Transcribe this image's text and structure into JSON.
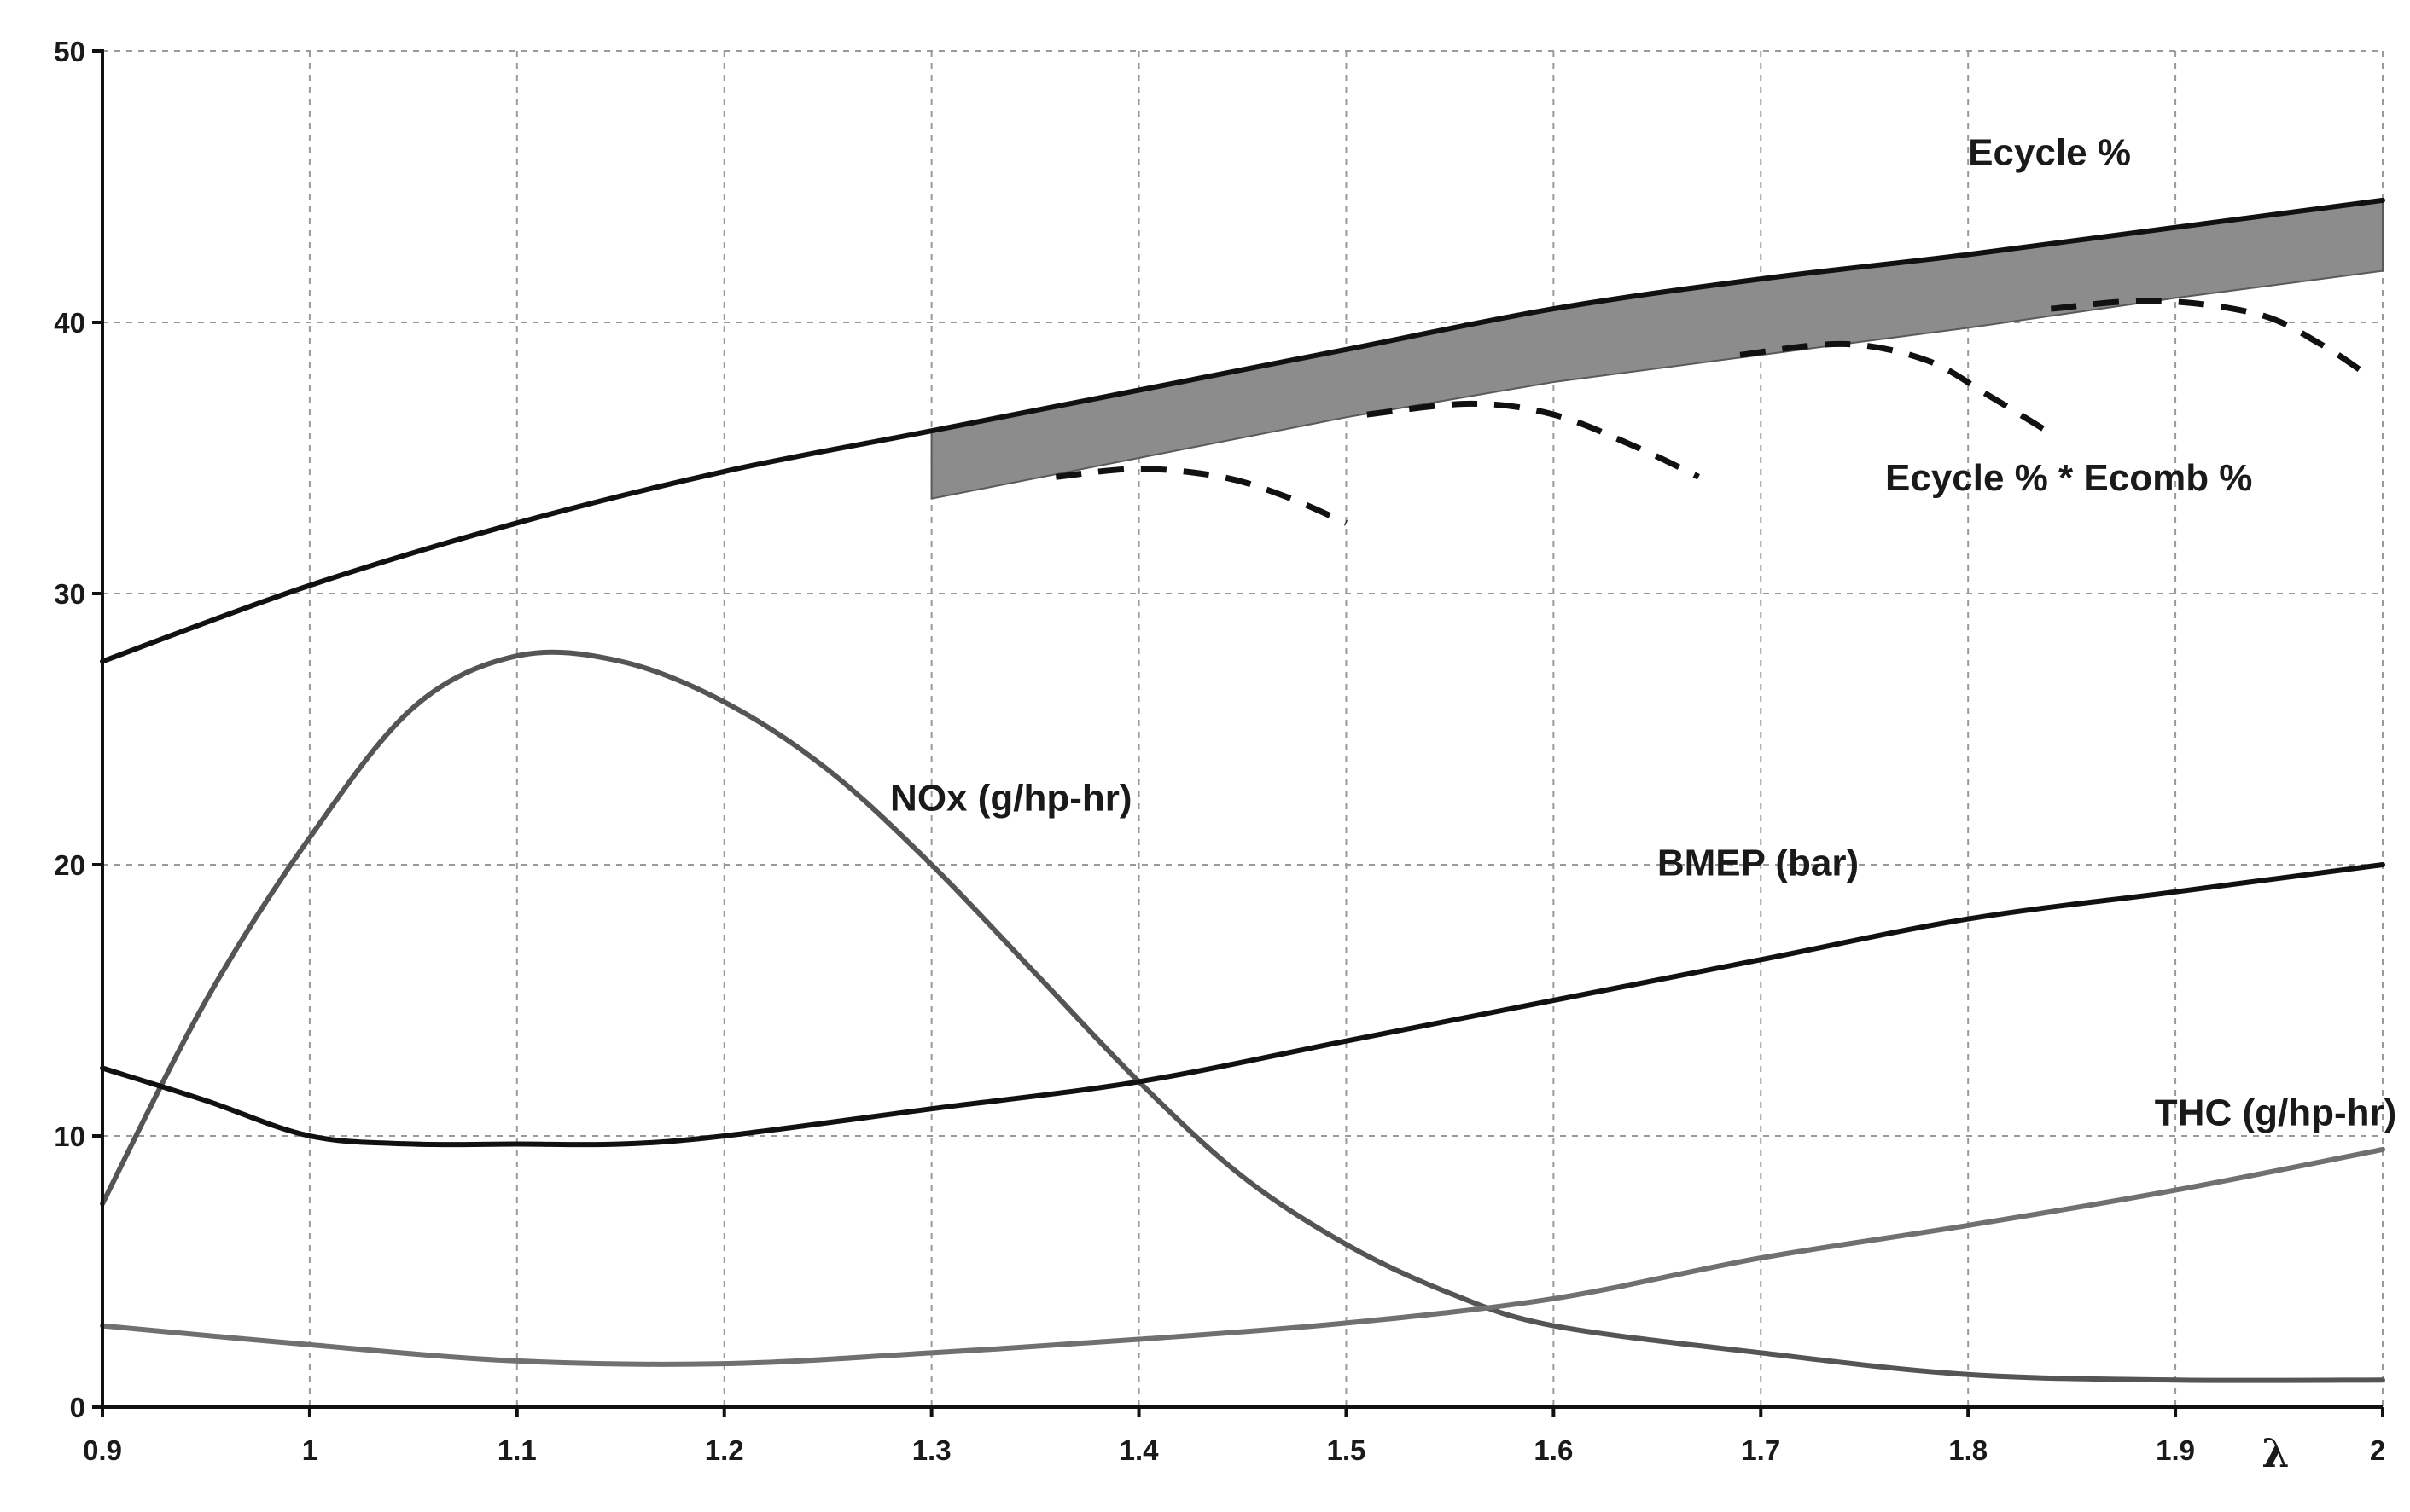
{
  "chart_data": {
    "type": "line",
    "title": "",
    "xlabel": "λ",
    "ylabel": "",
    "xlim": [
      0.9,
      2.0
    ],
    "ylim": [
      0,
      50
    ],
    "grid": true,
    "x_ticks": [
      "0.9",
      "1",
      "1.1",
      "1.2",
      "1.3",
      "1.4",
      "1.5",
      "1.6",
      "1.7",
      "1.8",
      "1.9",
      "2"
    ],
    "x_tick_values": [
      0.9,
      1.0,
      1.1,
      1.2,
      1.3,
      1.4,
      1.5,
      1.6,
      1.7,
      1.8,
      1.9,
      2.0
    ],
    "y_ticks": [
      "0",
      "10",
      "20",
      "30",
      "40",
      "50"
    ],
    "y_tick_values": [
      0,
      10,
      20,
      30,
      40,
      50
    ],
    "series": [
      {
        "name": "Ecycle %",
        "style": "solid",
        "color": "#111111",
        "x": [
          0.9,
          1.0,
          1.1,
          1.2,
          1.3,
          1.4,
          1.5,
          1.6,
          1.7,
          1.8,
          1.9,
          2.0
        ],
        "y": [
          27.5,
          30.3,
          32.6,
          34.5,
          36.0,
          37.5,
          39.0,
          40.5,
          41.6,
          42.5,
          43.5,
          44.5
        ],
        "label_at": [
          1.8,
          45.8
        ]
      },
      {
        "name": "Ecycle % * Ecomb %",
        "style": "band-and-dashed",
        "color": "#111111",
        "band_color": "#8c8c8c",
        "band": {
          "x": [
            1.3,
            1.4,
            1.5,
            1.6,
            1.7,
            1.8,
            1.9,
            2.0
          ],
          "upper": [
            36.0,
            37.5,
            39.0,
            40.5,
            41.6,
            42.5,
            43.5,
            44.5
          ],
          "lower": [
            33.5,
            35.0,
            36.5,
            37.8,
            38.8,
            39.8,
            40.9,
            41.9
          ]
        },
        "dashed_curves": [
          {
            "x": [
              1.36,
              1.4,
              1.44,
              1.47,
              1.5
            ],
            "y": [
              34.3,
              34.6,
              34.3,
              33.6,
              32.6
            ]
          },
          {
            "x": [
              1.51,
              1.56,
              1.6,
              1.64,
              1.67
            ],
            "y": [
              36.6,
              37.0,
              36.6,
              35.4,
              34.3
            ]
          },
          {
            "x": [
              1.69,
              1.74,
              1.78,
              1.81,
              1.84
            ],
            "y": [
              38.8,
              39.2,
              38.6,
              37.3,
              35.9
            ]
          },
          {
            "x": [
              1.84,
              1.89,
              1.94,
              1.97,
              1.99
            ],
            "y": [
              40.5,
              40.8,
              40.3,
              39.2,
              38.2
            ]
          }
        ],
        "label_at": [
          1.76,
          33.8
        ]
      },
      {
        "name": "NOx (g/hp-hr)",
        "style": "solid",
        "color": "#555555",
        "x": [
          0.9,
          0.95,
          1.0,
          1.05,
          1.1,
          1.15,
          1.2,
          1.25,
          1.3,
          1.35,
          1.4,
          1.45,
          1.5,
          1.55,
          1.6,
          1.7,
          1.8,
          1.9,
          2.0
        ],
        "y": [
          7.5,
          15.0,
          21.0,
          25.8,
          27.7,
          27.5,
          26.0,
          23.5,
          20.0,
          16.0,
          12.0,
          8.5,
          6.0,
          4.2,
          3.0,
          2.0,
          1.2,
          1.0,
          1.0
        ],
        "label_at": [
          1.28,
          22.0
        ]
      },
      {
        "name": "BMEP (bar)",
        "style": "solid",
        "color": "#111111",
        "x": [
          0.9,
          0.95,
          1.0,
          1.05,
          1.1,
          1.15,
          1.2,
          1.3,
          1.4,
          1.5,
          1.6,
          1.7,
          1.8,
          1.9,
          2.0
        ],
        "y": [
          12.5,
          11.3,
          10.0,
          9.7,
          9.7,
          9.7,
          10.0,
          11.0,
          12.0,
          13.5,
          15.0,
          16.5,
          18.0,
          19.0,
          20.0
        ],
        "label_at": [
          1.65,
          19.6
        ]
      },
      {
        "name": "THC (g/hp-hr)",
        "style": "solid",
        "color": "#707070",
        "x": [
          0.9,
          1.0,
          1.1,
          1.2,
          1.3,
          1.4,
          1.5,
          1.6,
          1.7,
          1.8,
          1.9,
          2.0
        ],
        "y": [
          3.0,
          2.3,
          1.7,
          1.6,
          2.0,
          2.5,
          3.1,
          4.0,
          5.5,
          6.7,
          8.0,
          9.5
        ],
        "label_at": [
          1.89,
          10.4
        ]
      }
    ]
  }
}
